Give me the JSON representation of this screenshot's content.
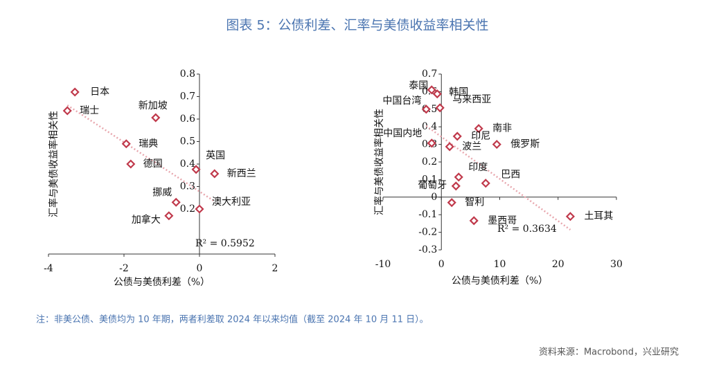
{
  "title": "图表 5：公债利差、汇率与美债收益率相关性",
  "note": "注：非美公债、美债均为 10 年期，两者利差取 2024 年以来均值（截至 2024 年 10 月 11 日）。",
  "source": "资料来源：Macrobond，兴业研究",
  "chart_data": [
    {
      "type": "scatter",
      "x_label": "公债与美债利差（%）",
      "y_label": "汇率与美债收益率相关性",
      "labels": [
        "日本",
        "瑞士",
        "新加坡",
        "瑞典",
        "德国",
        "英国",
        "新西兰",
        "挪威",
        "加拿大",
        "澳大利亚"
      ],
      "x": [
        -3.3,
        -3.5,
        -1.16,
        -1.94,
        -1.82,
        -0.09,
        0.4,
        -0.62,
        -0.81,
        0.0
      ],
      "values": [
        0.72,
        0.637,
        0.606,
        0.49,
        0.4,
        0.376,
        0.357,
        0.23,
        0.17,
        0.2
      ],
      "color": "#c0394b",
      "trendline": true,
      "trendline_color": "#e8a7ae",
      "annotation": "R² = 0.5952",
      "xlim": [
        -4,
        2
      ],
      "xticks": [
        -4,
        -2,
        0,
        2
      ],
      "ylim": [
        0,
        0.8
      ],
      "yticks": [
        0.2,
        0.3,
        0.4,
        0.5,
        0.6,
        0.7,
        0.8
      ]
    },
    {
      "type": "scatter",
      "x_label": "公债与美债利差（%）",
      "y_label": "汇率与美债收益率相关性",
      "labels": [
        "泰国",
        "韩国",
        "马来西亚",
        "中国台湾",
        "南非",
        "印尼",
        "俄罗斯",
        "中国内地",
        "波兰",
        "印度",
        "巴西",
        "葡萄牙",
        "智利",
        "墨西哥",
        "土耳其"
      ],
      "x": [
        -1.66,
        -0.71,
        -0.24,
        -2.6,
        6.4,
        2.73,
        9.5,
        -1.66,
        1.42,
        2.97,
        7.6,
        2.5,
        1.78,
        5.58,
        22.1
      ],
      "values": [
        0.61,
        0.587,
        0.508,
        0.5,
        0.39,
        0.346,
        0.3,
        0.307,
        0.287,
        0.114,
        0.079,
        0.063,
        -0.031,
        -0.134,
        -0.11
      ],
      "color": "#c0394b",
      "trendline": true,
      "trendline_color": "#e8a7ae",
      "annotation": "R² = 0.3634",
      "xlim": [
        -10,
        30
      ],
      "xticks": [
        -10,
        0,
        10,
        20,
        30
      ],
      "ylim": [
        -0.3,
        0.7
      ],
      "yticks": [
        -0.3,
        -0.2,
        -0.1,
        0,
        0.1,
        0.2,
        0.3,
        0.4,
        0.5,
        0.6,
        0.7
      ]
    }
  ]
}
